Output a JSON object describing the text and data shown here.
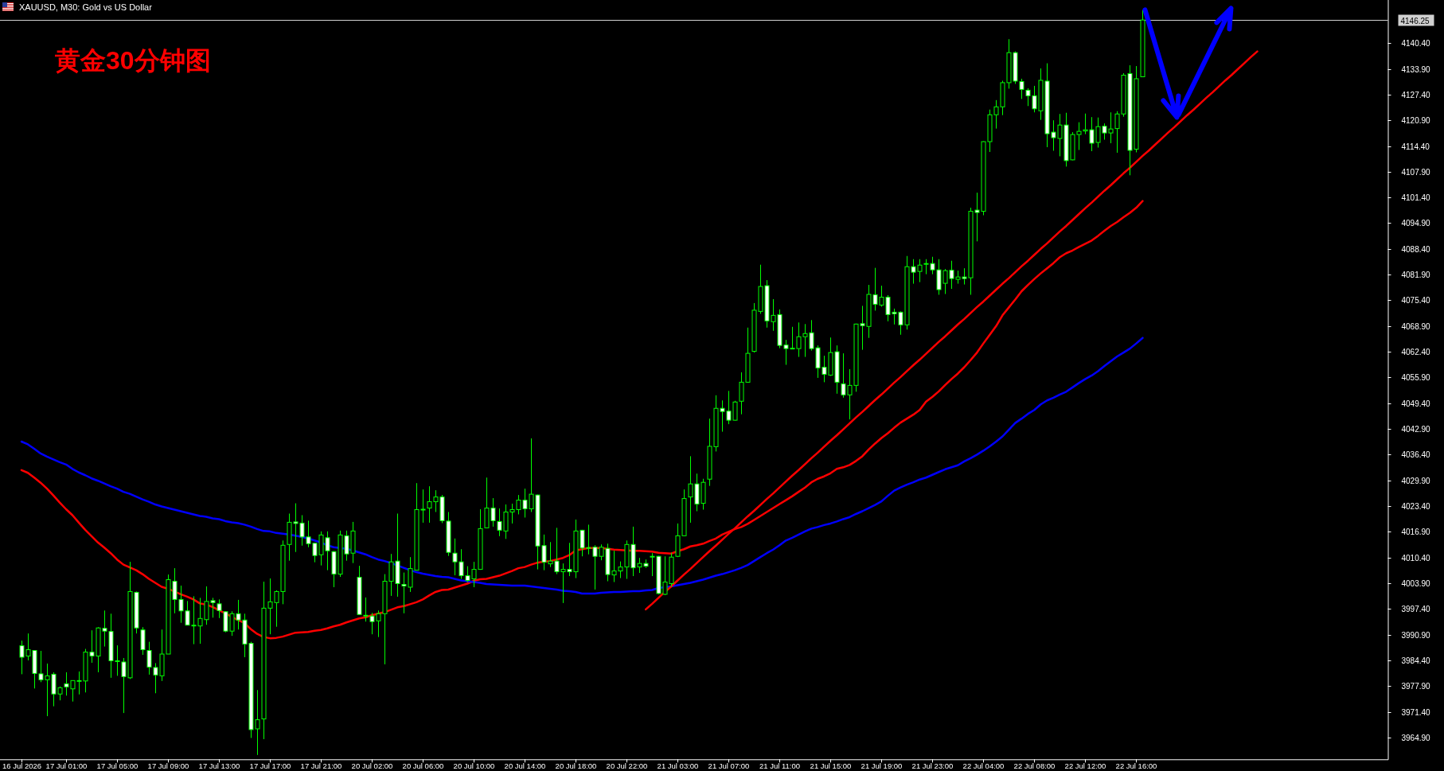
{
  "chart_data": {
    "type": "candlestick",
    "title": "黄金30分钟图",
    "subtitle": "XAUUSD, M30: Gold vs US Dollar",
    "color": "#00ff00",
    "categories": [
      "16 Jul 2026",
      null,
      null,
      null,
      null,
      null,
      null,
      "17 Jul 01:00",
      null,
      null,
      null,
      null,
      null,
      null,
      null,
      "17 Jul 05:00",
      null,
      null,
      null,
      null,
      null,
      null,
      null,
      "17 Jul 09:00",
      null,
      null,
      null,
      null,
      null,
      null,
      null,
      "17 Jul 13:00",
      null,
      null,
      null,
      null,
      null,
      null,
      null,
      "17 Jul 17:00",
      null,
      null,
      null,
      null,
      null,
      null,
      null,
      "17 Jul 21:00",
      null,
      null,
      null,
      null,
      null,
      null,
      null,
      "20 Jul 02:00",
      null,
      null,
      null,
      null,
      null,
      null,
      null,
      "20 Jul 06:00",
      null,
      null,
      null,
      null,
      null,
      null,
      null,
      "20 Jul 10:00",
      null,
      null,
      null,
      null,
      null,
      null,
      null,
      "20 Jul 14:00",
      null,
      null,
      null,
      null,
      null,
      null,
      null,
      "20 Jul 18:00",
      null,
      null,
      null,
      null,
      null,
      null,
      null,
      "20 Jul 22:00",
      null,
      null,
      null,
      null,
      null,
      null,
      null,
      "21 Jul 03:00",
      null,
      null,
      null,
      null,
      null,
      null,
      null,
      "21 Jul 07:00",
      null,
      null,
      null,
      null,
      null,
      null,
      null,
      "21 Jul 11:00",
      null,
      null,
      null,
      null,
      null,
      null,
      null,
      "21 Jul 15:00",
      null,
      null,
      null,
      null,
      null,
      null,
      null,
      "21 Jul 19:00",
      null,
      null,
      null,
      null,
      null,
      null,
      null,
      "21 Jul 23:00",
      null,
      null,
      null,
      null,
      null,
      null,
      null,
      "22 Jul 04:00",
      null,
      null,
      null,
      null,
      null,
      null,
      null,
      "22 Jul 08:00",
      null,
      null,
      null,
      null,
      null,
      null,
      null,
      "22 Jul 12:00",
      null,
      null,
      null,
      null,
      null,
      null,
      null,
      "22 Jul 16:00",
      null,
      null,
      null,
      null,
      null,
      null,
      null,
      null,
      null,
      null,
      null,
      null,
      null,
      null,
      null,
      null,
      null,
      null,
      null,
      null,
      null,
      null,
      null,
      null,
      null,
      null,
      null,
      null,
      null,
      null,
      null,
      null,
      null,
      null,
      null,
      null,
      null,
      null,
      null
    ],
    "ohlc": [
      [
        3988.1,
        3989.4,
        3980.9,
        3985.2
      ],
      [
        3985.5,
        3991.2,
        3984.4,
        3987.1
      ],
      [
        3986.9,
        3986.9,
        3977.3,
        3981.1
      ],
      [
        3981.0,
        3986.8,
        3978.9,
        3979.5
      ],
      [
        3979.5,
        3983.6,
        3970.3,
        3980.5
      ],
      [
        3980.9,
        3981.4,
        3972.8,
        3975.9
      ],
      [
        3975.9,
        3977.8,
        3974.3,
        3977.5
      ],
      [
        3978.5,
        3981.4,
        3975.5,
        3977.7
      ],
      [
        3977.2,
        3979.3,
        3974.0,
        3979.3
      ],
      [
        3979.2,
        3981.6,
        3975.8,
        3979.3
      ],
      [
        3979.2,
        3987.3,
        3976.3,
        3986.5
      ],
      [
        3986.5,
        3992.0,
        3983.8,
        3985.5
      ],
      [
        3985.5,
        3992.8,
        3981.4,
        3992.6
      ],
      [
        3992.5,
        3997.0,
        3987.9,
        3991.8
      ],
      [
        3991.7,
        3996.2,
        3980.0,
        3984.3
      ],
      [
        3984.3,
        3988.2,
        3980.5,
        3984.2
      ],
      [
        3984.0,
        3985.0,
        3971.1,
        3980.3
      ],
      [
        3980.0,
        4009.3,
        3979.7,
        4001.8
      ],
      [
        4001.6,
        4001.8,
        3991.2,
        3992.6
      ],
      [
        3992.1,
        3992.8,
        3985.8,
        3987.1
      ],
      [
        3986.9,
        3989.1,
        3980.8,
        3982.7
      ],
      [
        3982.6,
        3983.7,
        3976.1,
        3980.7
      ],
      [
        3980.5,
        3992.2,
        3979.2,
        3986.0
      ],
      [
        3986.0,
        4006.1,
        3986.0,
        4004.8
      ],
      [
        4004.4,
        4007.7,
        3996.3,
        3999.8
      ],
      [
        3999.8,
        4003.3,
        3993.9,
        3996.9
      ],
      [
        3996.9,
        3999.4,
        3993.3,
        3993.3
      ],
      [
        3993.2,
        4000.6,
        3988.5,
        3993.3
      ],
      [
        3993.1,
        4000.2,
        3988.6,
        3995.0
      ],
      [
        3994.7,
        4003.1,
        3993.4,
        3999.3
      ],
      [
        3999.5,
        4000.2,
        3995.2,
        3999.0
      ],
      [
        3998.7,
        3999.8,
        3995.1,
        3997.0
      ],
      [
        3996.7,
        3996.8,
        3991.5,
        3991.8
      ],
      [
        3991.8,
        3996.8,
        3990.6,
        3996.2
      ],
      [
        3996.2,
        3999.7,
        3992.2,
        3994.6
      ],
      [
        3994.6,
        3996.2,
        3985.2,
        3988.5
      ],
      [
        3988.7,
        3989.1,
        3964.8,
        3966.9
      ],
      [
        3967.1,
        3976.9,
        3960.5,
        3969.4
      ],
      [
        3969.6,
        4004.3,
        3964.5,
        3997.6
      ],
      [
        3997.6,
        4005.1,
        3991.0,
        3999.2
      ],
      [
        3999.0,
        4002.1,
        3992.9,
        4001.8
      ],
      [
        4001.8,
        4014.7,
        3998.6,
        4013.5
      ],
      [
        4013.7,
        4021.5,
        4009.6,
        4019.3
      ],
      [
        4019.4,
        4024.1,
        4011.8,
        4019.0
      ],
      [
        4019.1,
        4021.1,
        4013.4,
        4015.6
      ],
      [
        4015.6,
        4019.7,
        4013.0,
        4013.9
      ],
      [
        4014.0,
        4014.1,
        4009.2,
        4010.9
      ],
      [
        4011.1,
        4017.0,
        4008.4,
        4016.1
      ],
      [
        4015.4,
        4017.0,
        4007.2,
        4012.1
      ],
      [
        4011.9,
        4012.0,
        4002.9,
        4006.2
      ],
      [
        4006.2,
        4017.2,
        4005.5,
        4016.1
      ],
      [
        4015.9,
        4017.2,
        4009.6,
        4011.3
      ],
      [
        4011.5,
        4019.4,
        4009.0,
        4017.1
      ],
      [
        4005.4,
        4008.3,
        3995.9,
        3996.0
      ],
      [
        3995.7,
        4000.3,
        3994.2,
        3995.8
      ],
      [
        3995.6,
        3996.4,
        3991.0,
        3994.2
      ],
      [
        3994.4,
        3997.0,
        3990.3,
        3996.2
      ],
      [
        3996.2,
        4006.2,
        3983.4,
        4004.4
      ],
      [
        4004.4,
        4011.3,
        4000.7,
        4009.3
      ],
      [
        4009.5,
        4021.5,
        4000.5,
        4003.8
      ],
      [
        4003.6,
        4006.6,
        3996.3,
        4003.2
      ],
      [
        4002.9,
        4010.5,
        4001.7,
        4007.6
      ],
      [
        4007.2,
        4029.2,
        4007.1,
        4022.5
      ],
      [
        4022.5,
        4027.6,
        4019.2,
        4022.6
      ],
      [
        4022.9,
        4028.4,
        4019.2,
        4024.5
      ],
      [
        4024.5,
        4027.4,
        4021.9,
        4025.7
      ],
      [
        4025.7,
        4026.2,
        4019.1,
        4019.7
      ],
      [
        4019.6,
        4021.9,
        4010.8,
        4011.7
      ],
      [
        4011.5,
        4015.2,
        4005.9,
        4009.3
      ],
      [
        4009.3,
        4012.5,
        4005.0,
        4005.8
      ],
      [
        4005.8,
        4008.2,
        4004.2,
        4004.6
      ],
      [
        4005.0,
        4009.3,
        4002.9,
        4007.4
      ],
      [
        4007.4,
        4022.6,
        4007.3,
        4017.7
      ],
      [
        4017.9,
        4030.6,
        4017.8,
        4022.9
      ],
      [
        4022.9,
        4025.4,
        4018.2,
        4019.7
      ],
      [
        4019.5,
        4022.8,
        4015.8,
        4017.3
      ],
      [
        4017.1,
        4023.8,
        4015.1,
        4021.9
      ],
      [
        4021.9,
        4024.0,
        4019.0,
        4022.5
      ],
      [
        4022.5,
        4026.2,
        4021.3,
        4024.9
      ],
      [
        4024.9,
        4027.8,
        4020.5,
        4022.7
      ],
      [
        4022.7,
        4040.5,
        4021.9,
        4026.4
      ],
      [
        4026.2,
        4026.3,
        4007.4,
        4013.3
      ],
      [
        4013.4,
        4016.2,
        4007.2,
        4009.2
      ],
      [
        4008.8,
        4014.3,
        4008.0,
        4009.5
      ],
      [
        4009.5,
        4017.9,
        4006.2,
        4006.8
      ],
      [
        4006.8,
        4008.9,
        3998.9,
        4007.4
      ],
      [
        4007.4,
        4014.1,
        4005.7,
        4006.8
      ],
      [
        4006.8,
        4020.0,
        4005.2,
        4017.1
      ],
      [
        4017.3,
        4017.4,
        4010.7,
        4012.8
      ],
      [
        4012.8,
        4018.7,
        4011.2,
        4012.9
      ],
      [
        4013.0,
        4013.5,
        4002.3,
        4010.7
      ],
      [
        4010.7,
        4013.7,
        4009.7,
        4013.0
      ],
      [
        4012.7,
        4013.9,
        4004.4,
        4006.1
      ],
      [
        4006.0,
        4012.1,
        4004.2,
        4007.0
      ],
      [
        4007.0,
        4009.4,
        4005.2,
        4008.0
      ],
      [
        4008.0,
        4014.7,
        4005.0,
        4013.7
      ],
      [
        4013.7,
        4018.2,
        4005.7,
        4007.8
      ],
      [
        4008.0,
        4010.3,
        4006.5,
        4008.9
      ],
      [
        4008.9,
        4009.9,
        4007.8,
        4008.2
      ],
      [
        4010.6,
        4011.5,
        4005.7,
        4010.7
      ],
      [
        4010.7,
        4010.8,
        4001.1,
        4001.3
      ],
      [
        4001.1,
        4010.7,
        4000.9,
        4004.2
      ],
      [
        4003.8,
        4011.6,
        4003.0,
        4010.5
      ],
      [
        4010.7,
        4019.0,
        4010.5,
        4015.9
      ],
      [
        4015.9,
        4027.6,
        4015.8,
        4025.3
      ],
      [
        4025.7,
        4036.0,
        4019.2,
        4029.0
      ],
      [
        4029.0,
        4031.6,
        4022.1,
        4023.9
      ],
      [
        4024.1,
        4030.3,
        4022.5,
        4029.4
      ],
      [
        4030.2,
        4045.5,
        4028.5,
        4038.5
      ],
      [
        4038.4,
        4051.4,
        4037.2,
        4048.1
      ],
      [
        4048.1,
        4050.1,
        4042.2,
        4047.3
      ],
      [
        4047.4,
        4052.5,
        4044.1,
        4045.1
      ],
      [
        4045.1,
        4050.0,
        4045.0,
        4049.7
      ],
      [
        4049.9,
        4057.2,
        4046.6,
        4054.7
      ],
      [
        4054.7,
        4068.5,
        4054.6,
        4062.0
      ],
      [
        4062.5,
        4074.7,
        4062.2,
        4072.9
      ],
      [
        4072.6,
        4084.4,
        4072.0,
        4078.9
      ],
      [
        4079.1,
        4080.5,
        4068.5,
        4070.2
      ],
      [
        4070.0,
        4075.7,
        4067.7,
        4071.6
      ],
      [
        4071.8,
        4073.1,
        4063.3,
        4064.0
      ],
      [
        4064.1,
        4065.4,
        4059.1,
        4063.2
      ],
      [
        4063.2,
        4068.7,
        4063.1,
        4063.3
      ],
      [
        4063.2,
        4069.8,
        4061.1,
        4066.2
      ],
      [
        4066.2,
        4069.4,
        4061.1,
        4067.0
      ],
      [
        4067.2,
        4070.4,
        4062.7,
        4063.2
      ],
      [
        4063.4,
        4064.0,
        4055.8,
        4058.3
      ],
      [
        4058.5,
        4061.4,
        4054.7,
        4056.7
      ],
      [
        4056.5,
        4066.0,
        4056.3,
        4062.2
      ],
      [
        4062.4,
        4064.0,
        4051.8,
        4054.7
      ],
      [
        4054.3,
        4062.0,
        4050.8,
        4051.5
      ],
      [
        4051.5,
        4058.0,
        4045.3,
        4053.9
      ],
      [
        4053.9,
        4069.5,
        4052.3,
        4069.4
      ],
      [
        4069.5,
        4074.0,
        4062.9,
        4069.0
      ],
      [
        4068.8,
        4079.3,
        4065.9,
        4076.9
      ],
      [
        4076.8,
        4083.6,
        4072.8,
        4074.4
      ],
      [
        4074.2,
        4079.1,
        4073.8,
        4076.2
      ],
      [
        4076.2,
        4076.7,
        4070.1,
        4071.8
      ],
      [
        4072.4,
        4073.3,
        4069.3,
        4072.0
      ],
      [
        4072.4,
        4072.6,
        4066.7,
        4069.2
      ],
      [
        4069.2,
        4086.6,
        4068.0,
        4083.9
      ],
      [
        4083.9,
        4085.8,
        4079.6,
        4082.5
      ],
      [
        4082.7,
        4085.8,
        4080.0,
        4084.3
      ],
      [
        4084.7,
        4085.8,
        4082.0,
        4084.7
      ],
      [
        4084.7,
        4086.4,
        4082.0,
        4083.1
      ],
      [
        4083.1,
        4085.8,
        4076.8,
        4078.1
      ],
      [
        4079.7,
        4083.3,
        4077.0,
        4082.9
      ],
      [
        4083.0,
        4085.4,
        4078.3,
        4080.9
      ],
      [
        4080.7,
        4082.9,
        4079.6,
        4081.3
      ],
      [
        4081.3,
        4083.5,
        4079.4,
        4080.9
      ],
      [
        4081.1,
        4098.8,
        4076.8,
        4097.9
      ],
      [
        4098.2,
        4102.6,
        4090.3,
        4097.6
      ],
      [
        4097.9,
        4115.6,
        4096.9,
        4115.5
      ],
      [
        4115.5,
        4123.6,
        4112.9,
        4122.3
      ],
      [
        4122.3,
        4126.0,
        4118.8,
        4124.3
      ],
      [
        4124.3,
        4130.9,
        4122.2,
        4130.4
      ],
      [
        4130.4,
        4141.4,
        4128.9,
        4138.0
      ],
      [
        4138.0,
        4138.3,
        4130.1,
        4130.8
      ],
      [
        4130.7,
        4131.4,
        4126.3,
        4128.7
      ],
      [
        4128.5,
        4129.0,
        4124.5,
        4127.1
      ],
      [
        4127.1,
        4129.6,
        4122.9,
        4123.8
      ],
      [
        4123.3,
        4134.0,
        4121.0,
        4131.0
      ],
      [
        4130.8,
        4135.3,
        4114.1,
        4117.5
      ],
      [
        4117.9,
        4120.9,
        4113.2,
        4116.5
      ],
      [
        4116.3,
        4122.5,
        4111.8,
        4119.7
      ],
      [
        4119.7,
        4122.8,
        4109.2,
        4110.7
      ],
      [
        4110.9,
        4117.9,
        4110.8,
        4117.3
      ],
      [
        4117.3,
        4120.4,
        4113.4,
        4118.1
      ],
      [
        4118.2,
        4122.6,
        4117.4,
        4118.5
      ],
      [
        4118.5,
        4121.7,
        4113.1,
        4115.1
      ],
      [
        4115.3,
        4121.6,
        4114.0,
        4119.3
      ],
      [
        4119.4,
        4120.1,
        4116.0,
        4117.7
      ],
      [
        4117.7,
        4122.9,
        4115.1,
        4118.7
      ],
      [
        4118.8,
        4123.2,
        4112.7,
        4122.5
      ],
      [
        4122.5,
        4132.8,
        4121.8,
        4132.3
      ],
      [
        4132.7,
        4134.8,
        4107.0,
        4113.3
      ],
      [
        4113.6,
        4134.6,
        4112.8,
        4131.4
      ],
      [
        4131.9,
        4148.8,
        4131.8,
        4146.25
      ],
      null,
      null,
      null,
      null,
      null,
      null,
      null,
      null,
      null,
      null,
      null,
      null,
      null,
      null,
      null,
      null,
      null,
      null,
      null,
      null,
      null,
      null,
      null,
      null,
      null,
      null,
      null,
      null,
      null,
      null,
      null,
      null,
      null,
      null,
      null,
      null,
      null,
      null
    ],
    "series": [
      {
        "type": "line",
        "color": "#ff0000",
        "values": [
          4032.5,
          4031.8,
          4030.6,
          4029.3,
          4027.8,
          4026.1,
          4024.3,
          4022.6,
          4021.1,
          4019.2,
          4017.4,
          4015.8,
          4014.2,
          4012.9,
          4011.5,
          4009.9,
          4008.6,
          4007.9,
          4007.2,
          4006.2,
          4005.0,
          4004.0,
          4003.0,
          4002.5,
          4001.8,
          4001.1,
          4000.5,
          3999.8,
          3998.8,
          3998.5,
          3997.9,
          3997.1,
          3996.3,
          3995.4,
          3994.6,
          3993.8,
          3992.3,
          3991.1,
          3990.3,
          3990.0,
          3990.1,
          3990.4,
          3990.9,
          3991.4,
          3991.5,
          3991.6,
          3991.9,
          3992.1,
          3992.5,
          3993.0,
          3993.4,
          3994.0,
          3994.5,
          3995.0,
          3995.3,
          3995.8,
          3996.2,
          3996.6,
          3997.2,
          3997.8,
          3998.1,
          3998.6,
          3999.1,
          3999.8,
          4000.8,
          4001.7,
          4002.2,
          4002.3,
          4002.8,
          4003.3,
          4003.8,
          4004.5,
          4004.9,
          4005.0,
          4005.4,
          4005.8,
          4006.4,
          4007.0,
          4007.7,
          4008.0,
          4008.6,
          4009.1,
          4009.4,
          4009.5,
          4009.9,
          4010.3,
          4011.0,
          4012.2,
          4012.5,
          4012.8,
          4012.8,
          4012.8,
          4012.6,
          4012.4,
          4012.3,
          4012.2,
          4012.1,
          4012.1,
          4012.0,
          4011.9,
          4011.6,
          4011.5,
          4011.4,
          4012.0,
          4012.5,
          4013.2,
          4013.5,
          4013.9,
          4014.6,
          4015.2,
          4016.2,
          4016.9,
          4017.6,
          4018.1,
          4018.9,
          4019.9,
          4020.9,
          4021.9,
          4022.9,
          4023.9,
          4024.9,
          4025.9,
          4027.0,
          4028.1,
          4029.4,
          4030.3,
          4030.9,
          4031.7,
          4032.8,
          4033.2,
          4033.8,
          4034.8,
          4036.0,
          4037.7,
          4039.2,
          4040.6,
          4041.8,
          4043.2,
          4044.5,
          4045.5,
          4046.5,
          4047.7,
          4049.8,
          4051.0,
          4052.4,
          4054.0,
          4055.5,
          4056.9,
          4058.5,
          4060.3,
          4062.2,
          4064.5,
          4066.7,
          4068.9,
          4071.6,
          4073.6,
          4075.6,
          4077.7,
          4079.3,
          4080.8,
          4082.2,
          4083.5,
          4084.8,
          4086.3,
          4087.3,
          4088.0,
          4088.9,
          4089.7,
          4090.5,
          4091.7,
          4093.0,
          4094.2,
          4095.2,
          4096.4,
          4097.5,
          4098.8,
          4100.5,
          null,
          null,
          null,
          null,
          null,
          null,
          null,
          null,
          null,
          null,
          null,
          null,
          null,
          null,
          null,
          null,
          null,
          null,
          null,
          null,
          null,
          null,
          null,
          null,
          null,
          null,
          null,
          null,
          null,
          null,
          null,
          null,
          null,
          null,
          null,
          null,
          null,
          null
        ]
      },
      {
        "type": "line",
        "color": "#0000ff",
        "values": [
          4039.7,
          4039.0,
          4037.9,
          4036.7,
          4035.9,
          4035.2,
          4034.5,
          4033.9,
          4032.8,
          4031.9,
          4031.2,
          4030.4,
          4029.8,
          4029.1,
          4028.4,
          4027.8,
          4027.0,
          4026.5,
          4025.8,
          4025.1,
          4024.5,
          4023.8,
          4023.3,
          4022.9,
          4022.5,
          4022.1,
          4021.7,
          4021.3,
          4020.9,
          4020.7,
          4020.3,
          4020.1,
          4019.6,
          4019.3,
          4019.1,
          4018.7,
          4018.2,
          4017.6,
          4017.1,
          4017.0,
          4016.6,
          4016.4,
          4016.2,
          4015.9,
          4015.6,
          4015.2,
          4014.7,
          4014.2,
          4013.5,
          4013.0,
          4012.8,
          4012.6,
          4012.2,
          4011.7,
          4011.2,
          4010.5,
          4009.9,
          4009.5,
          4009.0,
          4008.4,
          4007.8,
          4007.2,
          4006.7,
          4006.3,
          4006.0,
          4005.7,
          4005.5,
          4005.4,
          4005.0,
          4004.6,
          4004.4,
          4004.2,
          4004.0,
          4003.7,
          4003.6,
          4003.5,
          4003.4,
          4003.3,
          4003.3,
          4003.3,
          4003.1,
          4002.9,
          4002.7,
          4002.5,
          4002.3,
          4002.0,
          4001.9,
          4001.7,
          4001.3,
          4001.3,
          4001.3,
          4001.5,
          4001.6,
          4001.7,
          4001.7,
          4001.8,
          4001.9,
          4001.9,
          4002.1,
          4002.2,
          4002.7,
          4002.9,
          4003.1,
          4003.4,
          4003.7,
          4004.0,
          4004.4,
          4004.8,
          4005.3,
          4005.8,
          4006.2,
          4006.7,
          4007.2,
          4007.8,
          4008.5,
          4009.5,
          4010.5,
          4011.5,
          4012.4,
          4013.5,
          4014.7,
          4015.4,
          4016.2,
          4017.0,
          4017.7,
          4018.1,
          4018.6,
          4019.0,
          4019.5,
          4020.1,
          4020.6,
          4021.4,
          4022.1,
          4022.9,
          4023.7,
          4024.6,
          4026.0,
          4027.3,
          4028.1,
          4028.8,
          4029.4,
          4030.1,
          4030.6,
          4031.3,
          4032.0,
          4032.7,
          4033.2,
          4033.7,
          4034.7,
          4035.5,
          4036.4,
          4037.4,
          4038.5,
          4039.7,
          4041.0,
          4042.7,
          4044.4,
          4045.5,
          4046.7,
          4047.7,
          4049.1,
          4050.1,
          4050.8,
          4051.6,
          4052.3,
          4053.4,
          4054.5,
          4055.5,
          4056.4,
          4057.5,
          4058.8,
          4060.0,
          4061.2,
          4062.2,
          4063.2,
          4064.5,
          4065.9,
          null,
          null,
          null,
          null,
          null,
          null,
          null,
          null,
          null,
          null,
          null,
          null,
          null,
          null,
          null,
          null,
          null,
          null,
          null,
          null,
          null,
          null,
          null,
          null,
          null,
          null,
          null,
          null,
          null,
          null,
          null,
          null,
          null,
          null,
          null,
          null,
          null,
          null
        ]
      },
      {
        "type": "line",
        "color": "#ff0000",
        "values": [
          null,
          null,
          null,
          null,
          null,
          null,
          null,
          null,
          null,
          null,
          null,
          null,
          null,
          null,
          null,
          null,
          null,
          null,
          null,
          null,
          null,
          null,
          null,
          null,
          null,
          null,
          null,
          null,
          null,
          null,
          null,
          null,
          null,
          null,
          null,
          null,
          null,
          null,
          null,
          null,
          null,
          null,
          null,
          null,
          null,
          null,
          null,
          null,
          null,
          null,
          null,
          null,
          null,
          null,
          null,
          null,
          null,
          null,
          null,
          null,
          null,
          null,
          null,
          null,
          null,
          null,
          null,
          null,
          null,
          null,
          null,
          null,
          null,
          null,
          null,
          null,
          null,
          null,
          null,
          null,
          null,
          null,
          null,
          null,
          null,
          null,
          null,
          null,
          null,
          null,
          null,
          null,
          null,
          null,
          null,
          null,
          null,
          null,
          3997.3,
          3998.7,
          4000.2,
          4001.7,
          4003.1,
          4004.6,
          4006.1,
          4007.5,
          4009.0,
          4010.5,
          4012.0,
          4013.4,
          4014.9,
          4016.4,
          4017.8,
          4019.3,
          4020.8,
          4022.2,
          4023.7,
          4025.2,
          4026.6,
          4028.1,
          4029.6,
          4031.1,
          4032.5,
          4034.0,
          4035.5,
          4036.9,
          4038.4,
          4039.9,
          4041.3,
          4042.8,
          4044.3,
          4045.8,
          4047.2,
          4048.7,
          4050.2,
          4051.6,
          4053.1,
          4054.6,
          4056.0,
          4057.5,
          4059.0,
          4060.4,
          4061.9,
          4063.4,
          4064.9,
          4066.3,
          4067.8,
          4069.3,
          4070.7,
          4072.2,
          4073.7,
          4075.1,
          4076.6,
          4078.1,
          4079.6,
          4081.0,
          4082.5,
          4084.0,
          4085.4,
          4086.9,
          4088.4,
          4089.8,
          4091.3,
          4092.8,
          4094.2,
          4095.7,
          4097.2,
          4098.7,
          4100.1,
          4101.6,
          4103.1,
          4104.5,
          4106.0,
          4107.5,
          4108.9,
          4110.4,
          4111.9,
          4113.3,
          4114.8,
          4116.3,
          4117.8,
          4119.2,
          4120.7,
          4122.2,
          4123.6,
          4125.1,
          4126.6,
          4128.0,
          4129.5,
          4131.0,
          4132.4,
          4133.9,
          4135.4,
          4136.9,
          4138.3,
          null,
          null,
          null,
          null,
          null,
          null,
          null,
          null,
          null,
          null,
          null,
          null,
          null,
          null,
          null,
          null,
          null,
          null,
          null,
          null
        ]
      }
    ],
    "ylim": [
      3959.4,
      4151.3
    ],
    "yticks": [
      {
        "value": 4140.4,
        "label": "4140.40"
      },
      {
        "value": 4133.9,
        "label": "4133.90"
      },
      {
        "value": 4127.4,
        "label": "4127.40"
      },
      {
        "value": 4120.9,
        "label": "4120.90"
      },
      {
        "value": 4114.4,
        "label": "4114.40"
      },
      {
        "value": 4107.9,
        "label": "4107.90"
      },
      {
        "value": 4101.4,
        "label": "4101.40"
      },
      {
        "value": 4094.9,
        "label": "4094.90"
      },
      {
        "value": 4088.4,
        "label": "4088.40"
      },
      {
        "value": 4081.9,
        "label": "4081.90"
      },
      {
        "value": 4075.4,
        "label": "4075.40"
      },
      {
        "value": 4068.9,
        "label": "4068.90"
      },
      {
        "value": 4062.4,
        "label": "4062.40"
      },
      {
        "value": 4055.9,
        "label": "4055.90"
      },
      {
        "value": 4049.4,
        "label": "4049.40"
      },
      {
        "value": 4042.9,
        "label": "4042.90"
      },
      {
        "value": 4036.4,
        "label": "4036.40"
      },
      {
        "value": 4029.9,
        "label": "4029.90"
      },
      {
        "value": 4023.4,
        "label": "4023.40"
      },
      {
        "value": 4016.9,
        "label": "4016.90"
      },
      {
        "value": 4010.4,
        "label": "4010.40"
      },
      {
        "value": 4003.9,
        "label": "4003.90"
      },
      {
        "value": 3997.4,
        "label": "3997.40"
      },
      {
        "value": 3990.9,
        "label": "3990.90"
      },
      {
        "value": 3984.4,
        "label": "3984.40"
      },
      {
        "value": 3977.9,
        "label": "3977.90"
      },
      {
        "value": 3971.4,
        "label": "3971.40"
      },
      {
        "value": 3964.9,
        "label": "3964.90"
      }
    ],
    "ref_lines": [
      {
        "axis": "y",
        "value": 4146.25,
        "label": "4146.25",
        "color": "#d0d0d0"
      }
    ]
  }
}
